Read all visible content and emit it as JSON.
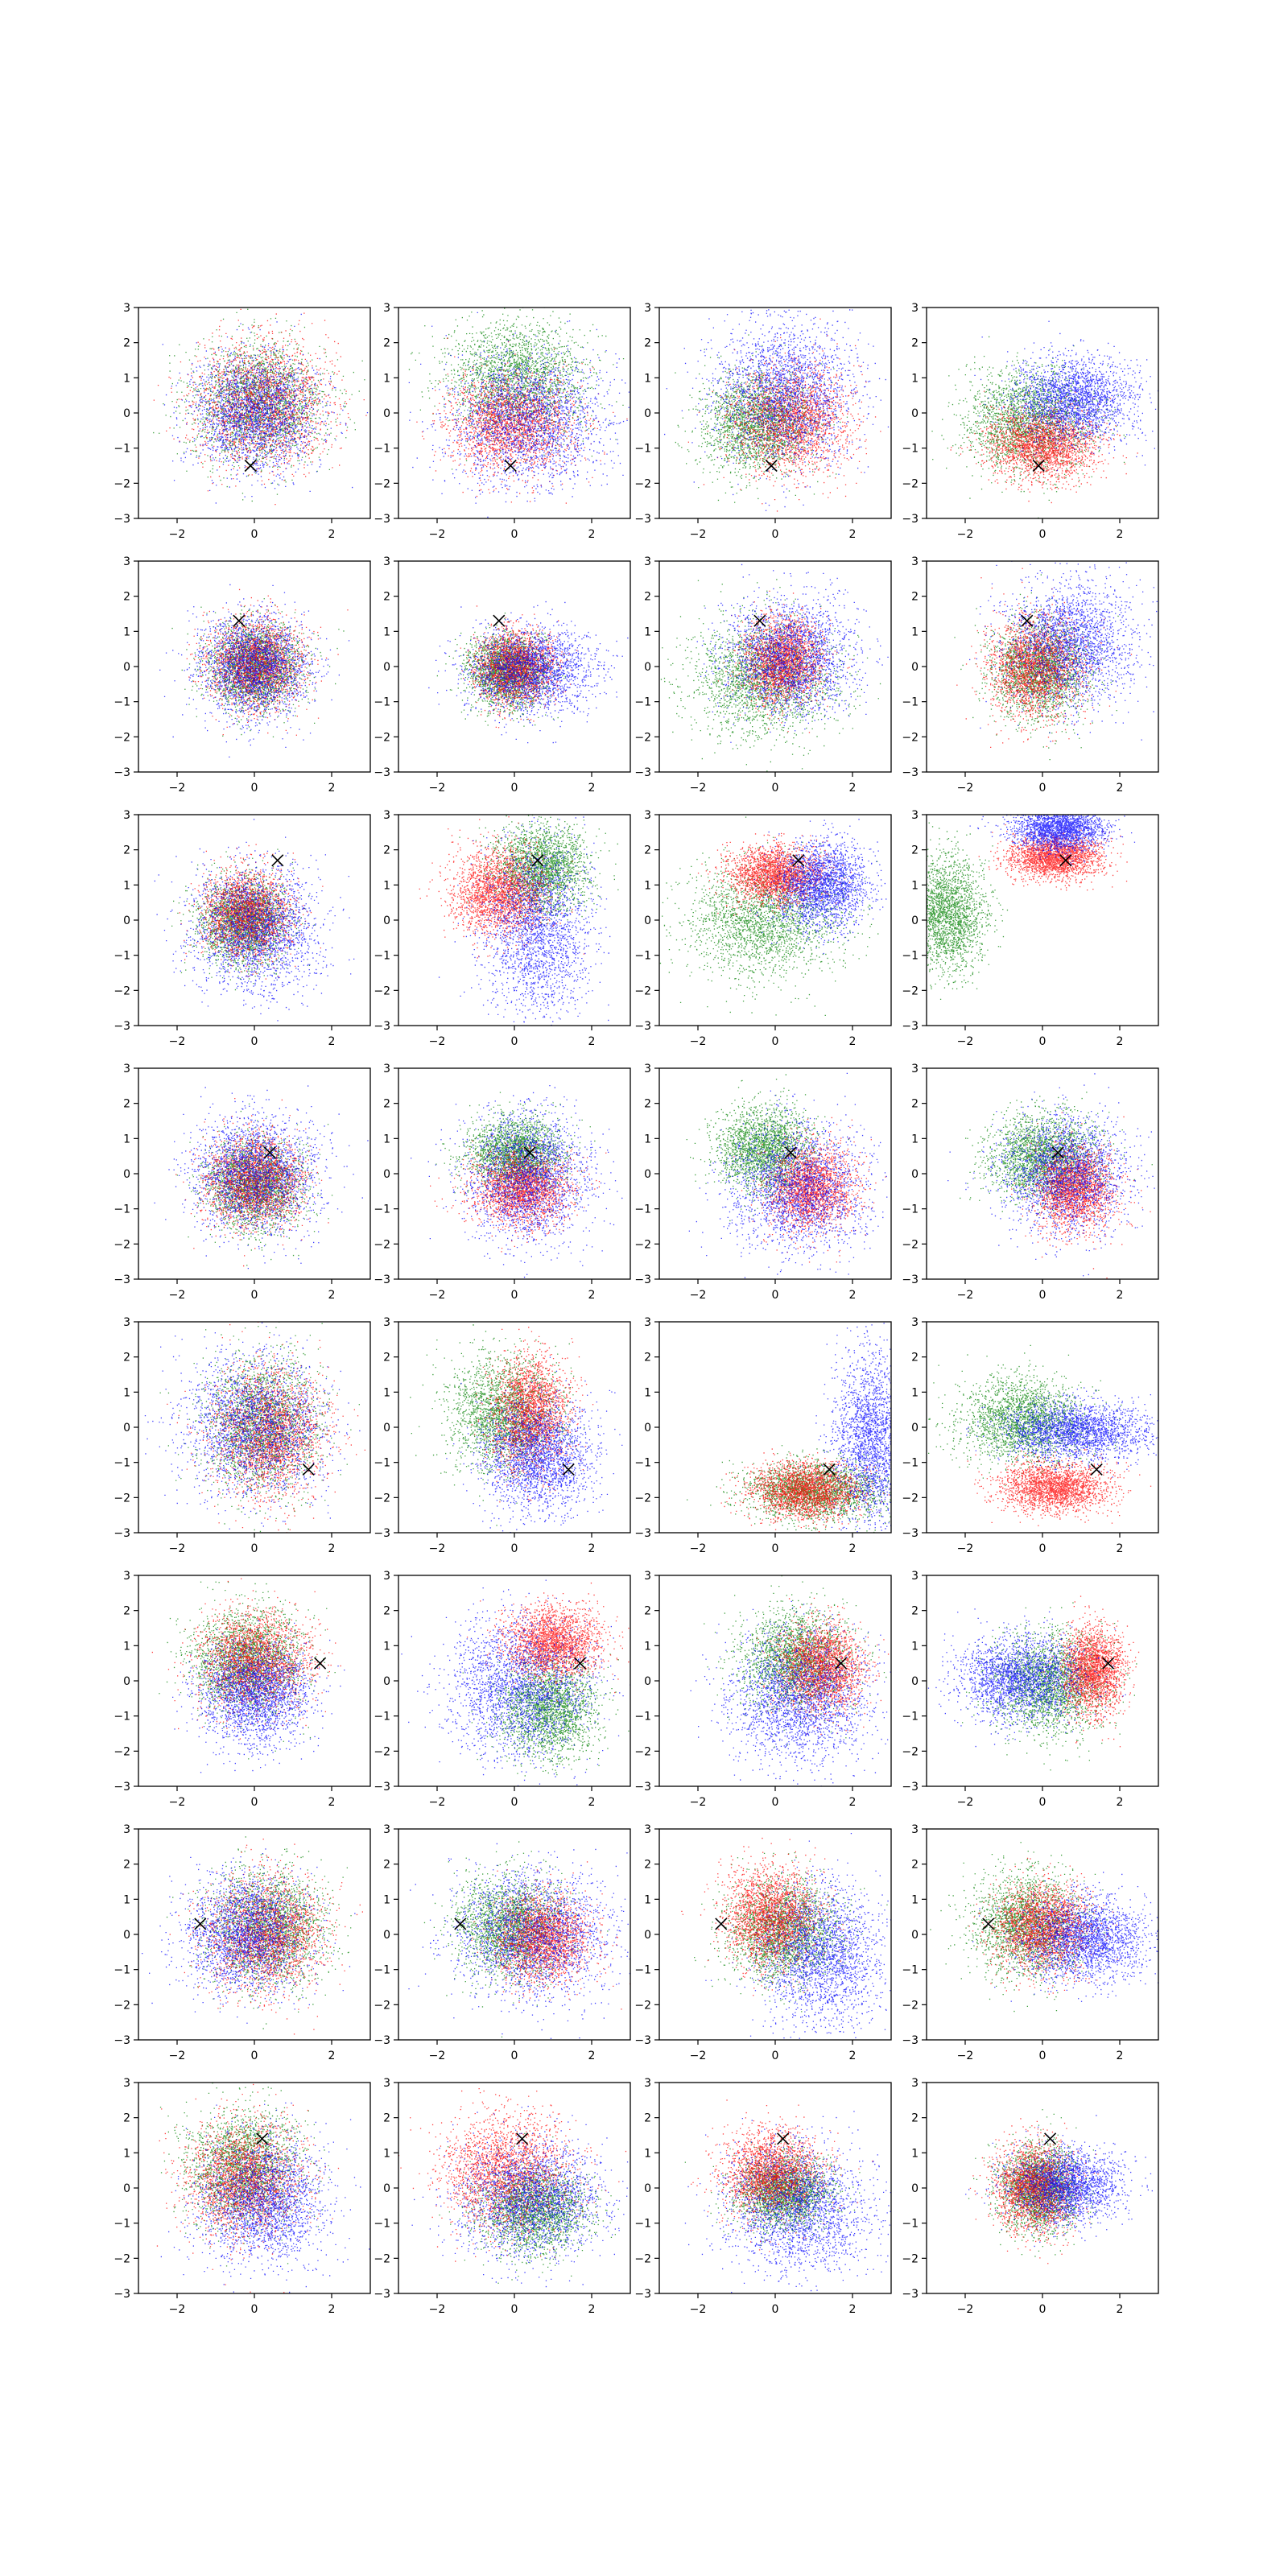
{
  "figure": {
    "rows": 8,
    "cols": 4,
    "background": "#ffffff"
  },
  "chart_data": {
    "type": "scatter",
    "grid": false,
    "legend": "none",
    "xlim": [
      -3,
      3
    ],
    "ylim": [
      -3,
      3
    ],
    "x_ticks": [
      -2,
      0,
      2
    ],
    "y_ticks": [
      -3,
      -2,
      -1,
      0,
      1,
      2,
      3
    ],
    "x_tick_labels": [
      "−2",
      "0",
      "2"
    ],
    "y_tick_labels": [
      "−3",
      "−2",
      "−1",
      "0",
      "1",
      "2",
      "3"
    ],
    "series_colors": {
      "red": "#ff0000",
      "green": "#008000",
      "blue": "#0000ff"
    },
    "marker_color": "#000000",
    "marker_symbol": "x",
    "row_markers": [
      {
        "x": -0.1,
        "y": -1.5
      },
      {
        "x": -0.4,
        "y": 1.3
      },
      {
        "x": 0.6,
        "y": 1.7
      },
      {
        "x": 0.4,
        "y": 0.6
      },
      {
        "x": 1.4,
        "y": -1.2
      },
      {
        "x": 1.7,
        "y": 0.5
      },
      {
        "x": -1.4,
        "y": 0.3
      },
      {
        "x": 0.2,
        "y": 1.4
      }
    ],
    "panels": [
      [
        {
          "red": {
            "cx": 0.2,
            "cy": 0.3,
            "sx": 0.85,
            "sy": 0.85
          },
          "green": {
            "cx": 0.1,
            "cy": 0.3,
            "sx": 0.85,
            "sy": 0.85
          },
          "blue": {
            "cx": 0.0,
            "cy": 0.0,
            "sx": 0.8,
            "sy": 0.8
          }
        },
        {
          "red": {
            "cx": -0.1,
            "cy": -0.3,
            "sx": 0.8,
            "sy": 0.7
          },
          "green": {
            "cx": 0.0,
            "cy": 1.0,
            "sx": 0.9,
            "sy": 0.8
          },
          "blue": {
            "cx": 0.3,
            "cy": -0.2,
            "sx": 1.0,
            "sy": 0.9
          }
        },
        {
          "red": {
            "cx": 0.4,
            "cy": -0.2,
            "sx": 0.75,
            "sy": 0.75
          },
          "green": {
            "cx": -0.5,
            "cy": -0.3,
            "sx": 0.7,
            "sy": 0.7
          },
          "blue": {
            "cx": 0.3,
            "cy": 0.6,
            "sx": 0.9,
            "sy": 1.0
          }
        },
        {
          "red": {
            "cx": 0.0,
            "cy": -0.9,
            "sx": 0.7,
            "sy": 0.5
          },
          "green": {
            "cx": -0.4,
            "cy": -0.2,
            "sx": 0.8,
            "sy": 0.7
          },
          "blue": {
            "cx": 0.8,
            "cy": 0.4,
            "sx": 0.8,
            "sy": 0.6
          }
        }
      ],
      [
        {
          "red": {
            "cx": 0.0,
            "cy": 0.1,
            "sx": 0.6,
            "sy": 0.6
          },
          "green": {
            "cx": 0.0,
            "cy": 0.0,
            "sx": 0.6,
            "sy": 0.6
          },
          "blue": {
            "cx": 0.0,
            "cy": 0.0,
            "sx": 0.7,
            "sy": 0.7
          }
        },
        {
          "red": {
            "cx": 0.0,
            "cy": 0.0,
            "sx": 0.5,
            "sy": 0.5
          },
          "green": {
            "cx": -0.2,
            "cy": -0.1,
            "sx": 0.5,
            "sy": 0.5
          },
          "blue": {
            "cx": 0.4,
            "cy": -0.1,
            "sx": 0.8,
            "sy": 0.6
          }
        },
        {
          "red": {
            "cx": 0.2,
            "cy": 0.2,
            "sx": 0.5,
            "sy": 0.6
          },
          "green": {
            "cx": -0.3,
            "cy": -0.3,
            "sx": 0.9,
            "sy": 0.8
          },
          "blue": {
            "cx": 0.4,
            "cy": 0.3,
            "sx": 0.8,
            "sy": 0.8
          }
        },
        {
          "red": {
            "cx": -0.2,
            "cy": 0.0,
            "sx": 0.6,
            "sy": 0.7
          },
          "green": {
            "cx": -0.1,
            "cy": -0.1,
            "sx": 0.6,
            "sy": 0.7
          },
          "blue": {
            "cx": 0.7,
            "cy": 0.7,
            "sx": 0.8,
            "sy": 0.9
          }
        }
      ],
      [
        {
          "red": {
            "cx": -0.2,
            "cy": 0.2,
            "sx": 0.55,
            "sy": 0.6
          },
          "green": {
            "cx": -0.3,
            "cy": 0.0,
            "sx": 0.55,
            "sy": 0.6
          },
          "blue": {
            "cx": 0.0,
            "cy": -0.2,
            "sx": 0.8,
            "sy": 0.9
          }
        },
        {
          "red": {
            "cx": -0.4,
            "cy": 0.8,
            "sx": 0.6,
            "sy": 0.6
          },
          "green": {
            "cx": 0.7,
            "cy": 1.5,
            "sx": 0.6,
            "sy": 0.6
          },
          "blue": {
            "cx": 0.6,
            "cy": -0.3,
            "sx": 0.7,
            "sy": 1.2
          }
        },
        {
          "red": {
            "cx": 0.0,
            "cy": 1.3,
            "sx": 0.6,
            "sy": 0.4
          },
          "green": {
            "cx": -0.3,
            "cy": 0.0,
            "sx": 1.0,
            "sy": 0.8
          },
          "blue": {
            "cx": 1.2,
            "cy": 1.0,
            "sx": 0.6,
            "sy": 0.6
          }
        },
        {
          "red": {
            "cx": 0.3,
            "cy": 1.8,
            "sx": 0.6,
            "sy": 0.3
          },
          "green": {
            "cx": -2.5,
            "cy": 0.2,
            "sx": 0.5,
            "sy": 0.8
          },
          "blue": {
            "cx": 0.4,
            "cy": 2.6,
            "sx": 0.6,
            "sy": 0.3
          }
        }
      ],
      [
        {
          "red": {
            "cx": 0.0,
            "cy": -0.2,
            "sx": 0.6,
            "sy": 0.6
          },
          "green": {
            "cx": 0.0,
            "cy": -0.3,
            "sx": 0.6,
            "sy": 0.6
          },
          "blue": {
            "cx": 0.0,
            "cy": 0.0,
            "sx": 0.8,
            "sy": 0.8
          }
        },
        {
          "red": {
            "cx": 0.2,
            "cy": -0.4,
            "sx": 0.6,
            "sy": 0.5
          },
          "green": {
            "cx": 0.0,
            "cy": 0.6,
            "sx": 0.6,
            "sy": 0.5
          },
          "blue": {
            "cx": 0.3,
            "cy": -0.1,
            "sx": 0.8,
            "sy": 0.9
          }
        },
        {
          "red": {
            "cx": 0.9,
            "cy": -0.4,
            "sx": 0.55,
            "sy": 0.6
          },
          "green": {
            "cx": -0.3,
            "cy": 0.7,
            "sx": 0.6,
            "sy": 0.6
          },
          "blue": {
            "cx": 0.6,
            "cy": -0.4,
            "sx": 0.9,
            "sy": 0.9
          }
        },
        {
          "red": {
            "cx": 0.8,
            "cy": -0.4,
            "sx": 0.5,
            "sy": 0.6
          },
          "green": {
            "cx": 0.0,
            "cy": 0.5,
            "sx": 0.7,
            "sy": 0.6
          },
          "blue": {
            "cx": 0.6,
            "cy": 0.0,
            "sx": 0.8,
            "sy": 0.8
          }
        }
      ],
      [
        {
          "red": {
            "cx": 0.4,
            "cy": -0.1,
            "sx": 0.7,
            "sy": 0.9
          },
          "green": {
            "cx": 0.2,
            "cy": 0.1,
            "sx": 0.7,
            "sy": 0.9
          },
          "blue": {
            "cx": 0.0,
            "cy": 0.0,
            "sx": 0.9,
            "sy": 1.0
          }
        },
        {
          "red": {
            "cx": 0.4,
            "cy": 0.4,
            "sx": 0.5,
            "sy": 0.8
          },
          "green": {
            "cx": -0.3,
            "cy": 0.4,
            "sx": 0.7,
            "sy": 0.8
          },
          "blue": {
            "cx": 0.6,
            "cy": -0.8,
            "sx": 0.7,
            "sy": 0.8
          }
        },
        {
          "red": {
            "cx": 0.8,
            "cy": -1.8,
            "sx": 0.7,
            "sy": 0.4
          },
          "green": {
            "cx": 1.0,
            "cy": -1.8,
            "sx": 0.9,
            "sy": 0.4
          },
          "blue": {
            "cx": 2.5,
            "cy": -0.3,
            "sx": 0.5,
            "sy": 1.2
          }
        },
        {
          "red": {
            "cx": 0.3,
            "cy": -1.7,
            "sx": 0.7,
            "sy": 0.35
          },
          "green": {
            "cx": -0.5,
            "cy": 0.2,
            "sx": 0.8,
            "sy": 0.6
          },
          "blue": {
            "cx": 0.9,
            "cy": -0.1,
            "sx": 0.9,
            "sy": 0.4
          }
        }
      ],
      [
        {
          "red": {
            "cx": 0.0,
            "cy": 0.6,
            "sx": 0.7,
            "sy": 0.7
          },
          "green": {
            "cx": -0.2,
            "cy": 0.6,
            "sx": 0.7,
            "sy": 0.7
          },
          "blue": {
            "cx": 0.0,
            "cy": -0.4,
            "sx": 0.7,
            "sy": 0.7
          }
        },
        {
          "red": {
            "cx": 1.0,
            "cy": 1.1,
            "sx": 0.6,
            "sy": 0.5
          },
          "green": {
            "cx": 0.9,
            "cy": -0.8,
            "sx": 0.6,
            "sy": 0.7
          },
          "blue": {
            "cx": 0.1,
            "cy": -0.2,
            "sx": 0.9,
            "sy": 1.0
          }
        },
        {
          "red": {
            "cx": 1.2,
            "cy": 0.4,
            "sx": 0.55,
            "sy": 0.6
          },
          "green": {
            "cx": 0.5,
            "cy": 0.6,
            "sx": 0.7,
            "sy": 0.7
          },
          "blue": {
            "cx": 0.6,
            "cy": -0.5,
            "sx": 0.9,
            "sy": 0.9
          }
        },
        {
          "red": {
            "cx": 1.3,
            "cy": 0.3,
            "sx": 0.4,
            "sy": 0.6
          },
          "green": {
            "cx": 0.2,
            "cy": -0.1,
            "sx": 0.7,
            "sy": 0.7
          },
          "blue": {
            "cx": -0.6,
            "cy": 0.1,
            "sx": 0.8,
            "sy": 0.6
          }
        }
      ],
      [
        {
          "red": {
            "cx": 0.3,
            "cy": 0.0,
            "sx": 0.75,
            "sy": 0.8
          },
          "green": {
            "cx": 0.3,
            "cy": 0.2,
            "sx": 0.75,
            "sy": 0.8
          },
          "blue": {
            "cx": -0.2,
            "cy": 0.0,
            "sx": 0.8,
            "sy": 0.8
          }
        },
        {
          "red": {
            "cx": 0.7,
            "cy": -0.1,
            "sx": 0.6,
            "sy": 0.6
          },
          "green": {
            "cx": -0.1,
            "cy": 0.2,
            "sx": 0.7,
            "sy": 0.7
          },
          "blue": {
            "cx": 0.5,
            "cy": 0.0,
            "sx": 1.0,
            "sy": 0.9
          }
        },
        {
          "red": {
            "cx": -0.1,
            "cy": 0.5,
            "sx": 0.6,
            "sy": 0.7
          },
          "green": {
            "cx": 0.2,
            "cy": 0.1,
            "sx": 0.7,
            "sy": 0.7
          },
          "blue": {
            "cx": 1.2,
            "cy": -0.6,
            "sx": 0.8,
            "sy": 1.0
          }
        },
        {
          "red": {
            "cx": 0.0,
            "cy": 0.2,
            "sx": 0.6,
            "sy": 0.6
          },
          "green": {
            "cx": -0.4,
            "cy": 0.3,
            "sx": 0.7,
            "sy": 0.7
          },
          "blue": {
            "cx": 1.1,
            "cy": -0.1,
            "sx": 0.8,
            "sy": 0.6
          }
        }
      ],
      [
        {
          "red": {
            "cx": -0.3,
            "cy": 0.3,
            "sx": 0.7,
            "sy": 0.8
          },
          "green": {
            "cx": -0.3,
            "cy": 0.6,
            "sx": 0.7,
            "sy": 0.8
          },
          "blue": {
            "cx": 0.2,
            "cy": -0.4,
            "sx": 0.8,
            "sy": 0.9
          }
        },
        {
          "red": {
            "cx": -0.2,
            "cy": 0.5,
            "sx": 0.8,
            "sy": 0.8
          },
          "green": {
            "cx": 0.5,
            "cy": -0.6,
            "sx": 0.7,
            "sy": 0.6
          },
          "blue": {
            "cx": 0.4,
            "cy": -0.3,
            "sx": 0.9,
            "sy": 0.8
          }
        },
        {
          "red": {
            "cx": -0.1,
            "cy": 0.4,
            "sx": 0.6,
            "sy": 0.6
          },
          "green": {
            "cx": 0.2,
            "cy": -0.1,
            "sx": 0.6,
            "sy": 0.5
          },
          "blue": {
            "cx": 0.6,
            "cy": -0.6,
            "sx": 0.9,
            "sy": 0.9
          }
        },
        {
          "red": {
            "cx": -0.2,
            "cy": 0.0,
            "sx": 0.5,
            "sy": 0.6
          },
          "green": {
            "cx": -0.1,
            "cy": 0.0,
            "sx": 0.5,
            "sy": 0.6
          },
          "blue": {
            "cx": 0.6,
            "cy": 0.1,
            "sx": 0.7,
            "sy": 0.5
          }
        }
      ]
    ]
  }
}
